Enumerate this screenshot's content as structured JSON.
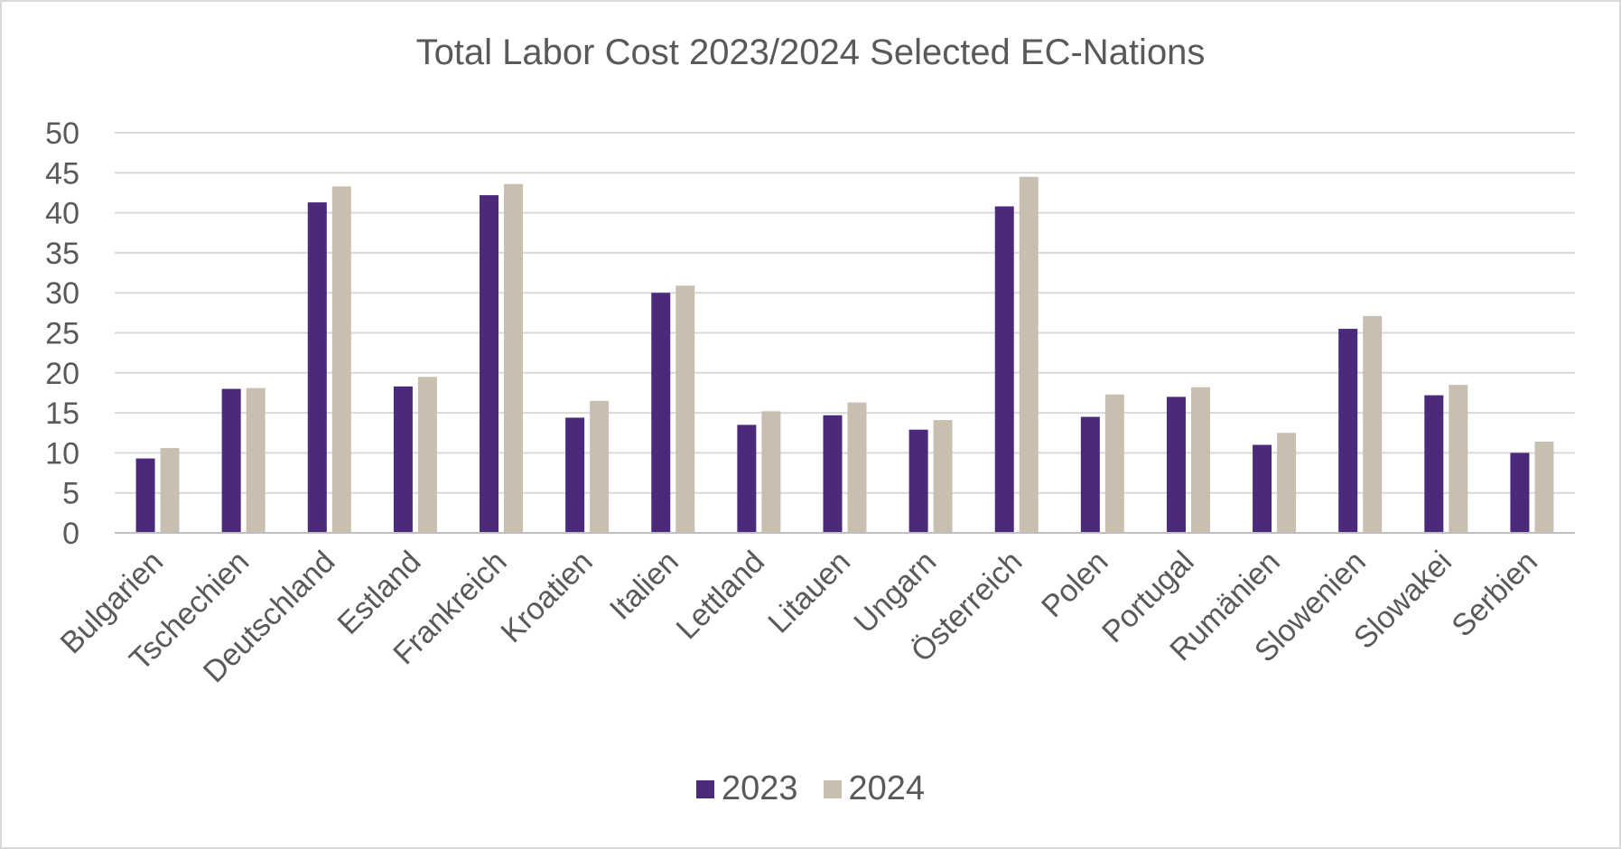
{
  "chart_data": {
    "type": "bar",
    "title": "Total Labor Cost 2023/2024 Selected EC-Nations",
    "xlabel": "",
    "ylabel": "",
    "ylim": [
      0,
      50
    ],
    "yticks": [
      0,
      5,
      10,
      15,
      20,
      25,
      30,
      35,
      40,
      45,
      50
    ],
    "grid": true,
    "legend_position": "bottom",
    "categories": [
      "Bulgarien",
      "Tschechien",
      "Deutschland",
      "Estland",
      "Frankreich",
      "Kroatien",
      "Italien",
      "Lettland",
      "Litauen",
      "Ungarn",
      "Österreich",
      "Polen",
      "Portugal",
      "Rumänien",
      "Slowenien",
      "Slowakei",
      "Serbien"
    ],
    "series": [
      {
        "name": "2023",
        "color": "#4b2a7b",
        "values": [
          9.3,
          18.0,
          41.3,
          18.3,
          42.2,
          14.4,
          30.0,
          13.5,
          14.7,
          12.9,
          40.8,
          14.5,
          17.0,
          11.0,
          25.5,
          17.2,
          10.0
        ]
      },
      {
        "name": "2024",
        "color": "#c9bfb1",
        "values": [
          10.6,
          18.1,
          43.3,
          19.5,
          43.6,
          16.5,
          30.9,
          15.2,
          16.3,
          14.1,
          44.5,
          17.3,
          18.2,
          12.5,
          27.1,
          18.5,
          11.4
        ]
      }
    ]
  }
}
